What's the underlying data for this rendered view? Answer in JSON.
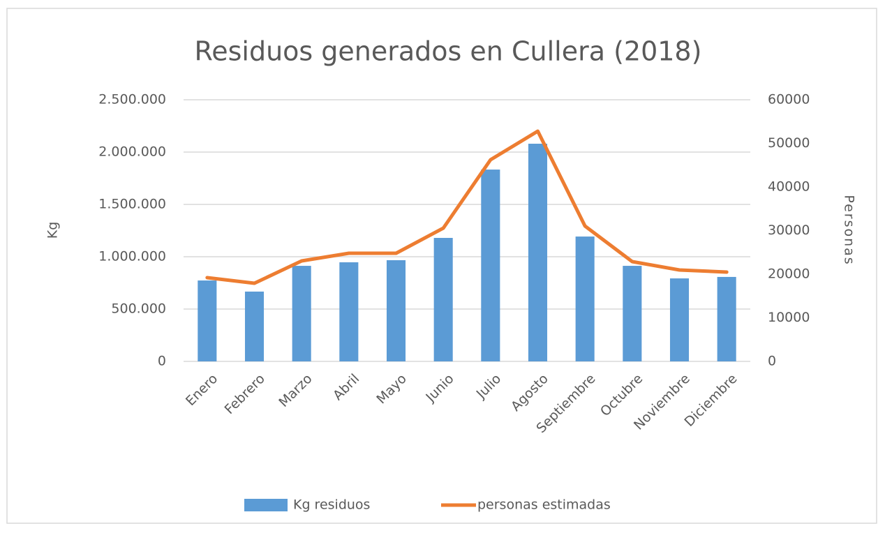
{
  "chart_data": {
    "type": "bar_line",
    "title": "Residuos generados en Cullera (2018)",
    "ylabel": "Kg",
    "y2label": "Personas",
    "categories": [
      "Enero",
      "Febrero",
      "Marzo",
      "Abril",
      "Mayo",
      "Junio",
      "Julio",
      "Agosto",
      "Septiembre",
      "Octubre",
      "Noviembre",
      "Diciembre"
    ],
    "series": [
      {
        "name": "Kg residuos",
        "type": "bar",
        "color": "#5b9bd5",
        "values": [
          773000,
          667000,
          913000,
          947000,
          967000,
          1180000,
          1833000,
          2080000,
          1193000,
          913000,
          793000,
          807000
        ]
      },
      {
        "name": "personas estimadas",
        "type": "line",
        "axis": "y2",
        "color": "#ed7d31",
        "values": [
          19200,
          17920,
          23040,
          24800,
          24800,
          30560,
          46240,
          52800,
          31040,
          22880,
          20960,
          20480
        ]
      }
    ],
    "ylim": [
      0,
      2500000
    ],
    "yticks": [
      0,
      {
        "value": 500000,
        "label": "500.000"
      },
      {
        "value": 1000000,
        "label": "1.000.000"
      },
      {
        "value": 1500000,
        "label": "1.500.000"
      },
      {
        "value": 2000000,
        "label": "2.000.000"
      },
      {
        "value": 2500000,
        "label": "2.500.000"
      }
    ],
    "y2lim": [
      0,
      60000
    ],
    "y2ticks": [
      0,
      10000,
      20000,
      30000,
      40000,
      50000,
      60000
    ],
    "grid": true,
    "legend": "bottom"
  }
}
